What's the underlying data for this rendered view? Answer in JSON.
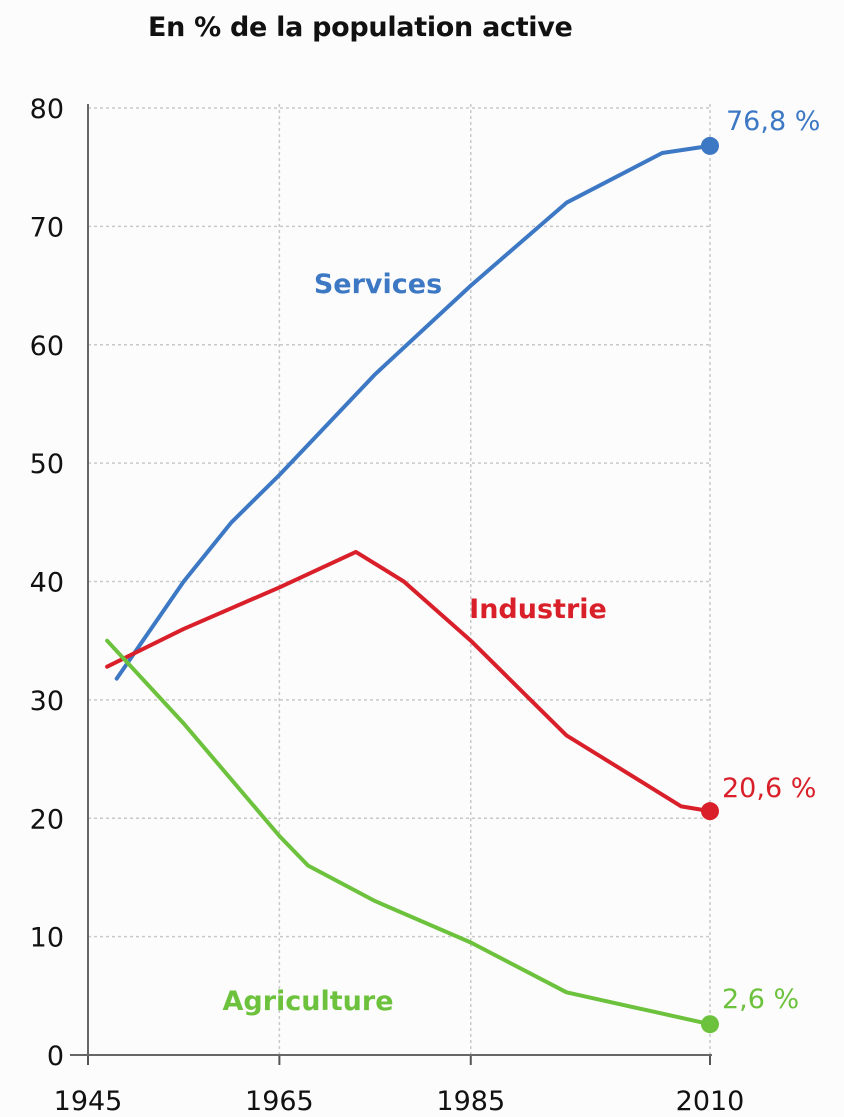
{
  "chart_data": {
    "type": "line",
    "title": "En % de la population active",
    "xlabel": "",
    "ylabel": "",
    "xlim": [
      1945,
      2010
    ],
    "ylim": [
      0,
      80
    ],
    "x_ticks": [
      "1945",
      "1965",
      "1985",
      "2010"
    ],
    "y_ticks": [
      "0",
      "10",
      "20",
      "30",
      "40",
      "50",
      "60",
      "70",
      "80"
    ],
    "grid": true,
    "series": [
      {
        "name": "Services",
        "color": "#3d78c4",
        "x": [
          1948,
          1955,
          1960,
          1965,
          1975,
          1985,
          1995,
          2005,
          2010
        ],
        "y": [
          31.8,
          40,
          45,
          49,
          57.5,
          65,
          72,
          76.2,
          76.8
        ],
        "end_value_label": "76,8 %"
      },
      {
        "name": "Industrie",
        "color": "#d9202a",
        "x": [
          1947,
          1955,
          1965,
          1973,
          1978,
          1985,
          1995,
          2007,
          2010
        ],
        "y": [
          32.8,
          36,
          39.5,
          42.5,
          40,
          35,
          27,
          21,
          20.6
        ],
        "end_value_label": "20,6 %"
      },
      {
        "name": "Agriculture",
        "color": "#6cc23c",
        "x": [
          1947,
          1955,
          1965,
          1968,
          1975,
          1985,
          1995,
          2005,
          2010
        ],
        "y": [
          35,
          28,
          18.5,
          16,
          13,
          9.5,
          5.3,
          3.5,
          2.6
        ],
        "end_value_label": "2,6 %"
      }
    ]
  }
}
